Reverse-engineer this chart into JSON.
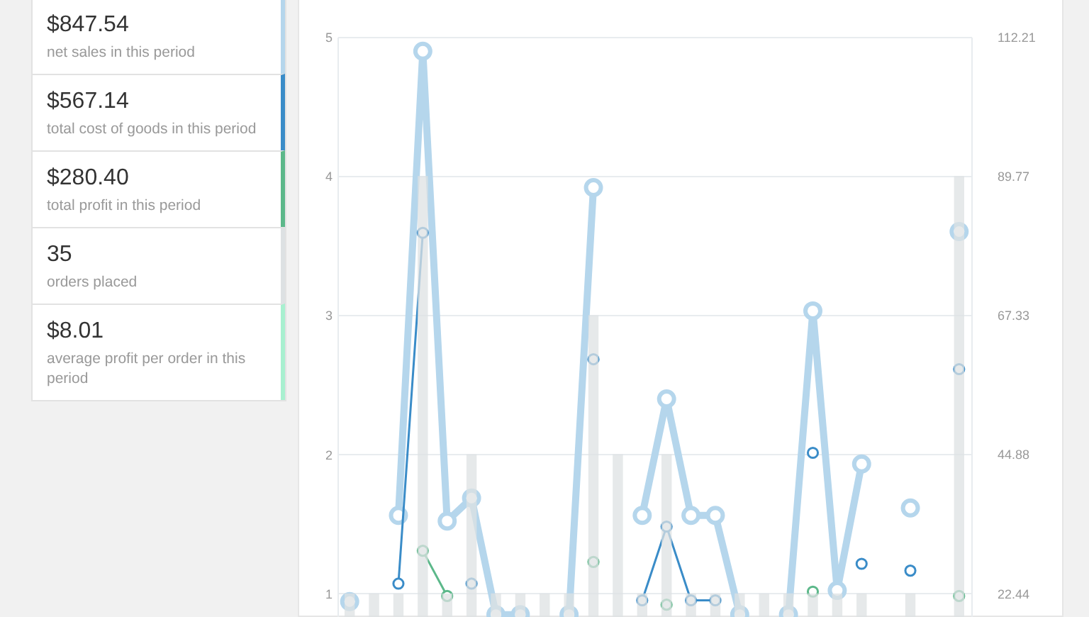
{
  "chart_data": [
    {
      "type": "other",
      "annotations": [
        "$847.54",
        "net sales in this period",
        "$567.14",
        "total cost of goods in this period",
        "$280.40",
        "total profit in this period",
        "35",
        "orders placed",
        "$8.01",
        "average profit per order in this period"
      ],
      "colors": [
        "#b5d6ec",
        "#3a8cc8",
        "#5cb88a",
        "#dde1e3",
        "#a8f0d0"
      ]
    },
    {
      "type": "bar",
      "categories": [
        null,
        null,
        null,
        null,
        null,
        null,
        null,
        null,
        null,
        null,
        null,
        null,
        null,
        null,
        null,
        null,
        null,
        null,
        null,
        null,
        null,
        null,
        null,
        null,
        null,
        null
      ],
      "series": [
        {
          "type": "bar",
          "axis": "y",
          "color": "#dde1e3",
          "values": [
            1,
            1,
            1,
            4,
            1,
            2,
            1,
            1,
            1,
            1,
            3,
            2,
            1,
            2,
            1,
            1,
            1,
            1,
            1,
            1,
            1,
            1,
            null,
            1,
            null,
            4
          ]
        },
        {
          "type": "line",
          "axis": "y2",
          "color": "#b5d6ec",
          "values": [
            21.1,
            null,
            35.0,
            109.9,
            34.1,
            37.8,
            19.0,
            19.0,
            null,
            19.0,
            87.9,
            null,
            35.0,
            53.8,
            35.0,
            35.0,
            19.0,
            null,
            19.0,
            68.0,
            22.9,
            43.3,
            null,
            36.2,
            null,
            80.8
          ]
        },
        {
          "type": "line",
          "axis": "y2",
          "color": "#3a8cc8",
          "values": [
            null,
            null,
            24.0,
            80.6,
            null,
            24.0,
            null,
            null,
            null,
            null,
            60.2,
            null,
            21.3,
            33.2,
            21.3,
            21.3,
            null,
            null,
            null,
            45.1,
            null,
            27.2,
            null,
            26.1,
            null,
            58.6
          ]
        },
        {
          "type": "line",
          "axis": "y2",
          "color": "#5cb88a",
          "values": [
            null,
            null,
            null,
            29.3,
            22.0,
            null,
            null,
            null,
            null,
            null,
            27.5,
            null,
            null,
            20.6,
            null,
            null,
            null,
            null,
            null,
            22.7,
            null,
            null,
            null,
            null,
            null,
            22.0
          ]
        }
      ],
      "ylim": [
        0.79,
        5
      ],
      "yticks": [
        1,
        2,
        3,
        4,
        5
      ],
      "y2lim": [
        17.7,
        112.21
      ],
      "y2ticks": [
        22.44,
        44.88,
        67.33,
        89.77,
        112.21
      ],
      "grid": "y",
      "marker": "circle"
    }
  ]
}
